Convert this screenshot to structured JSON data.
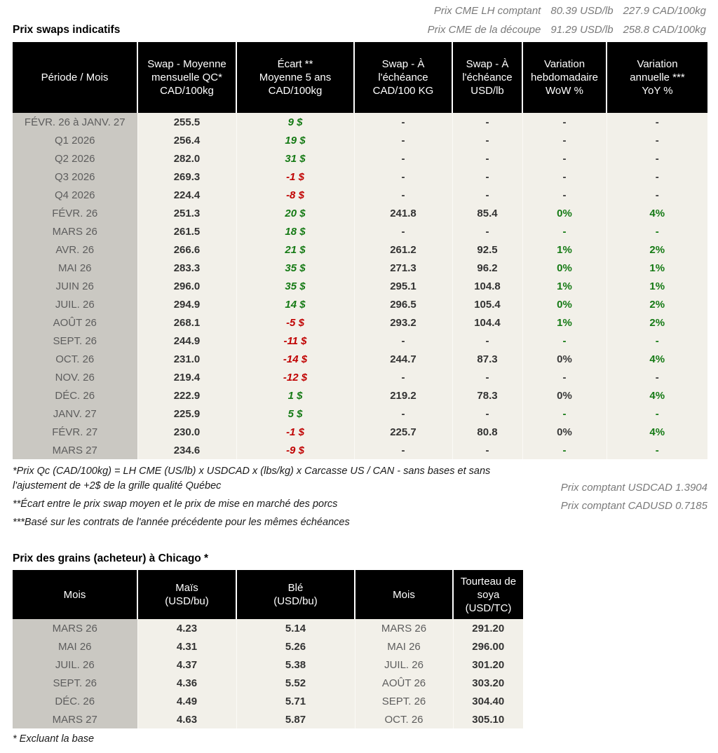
{
  "colors": {
    "positive": "#157a15",
    "negative": "#c00000",
    "neutral": "#3a3a3a",
    "header_bg": "#000000",
    "body_bg": "#f2f0e9",
    "period_bg": "#cac8c2"
  },
  "cme_header": {
    "line1": {
      "label": "Prix CME LH comptant",
      "usd": "80.39 USD/lb",
      "cad": "227.9 CAD/100kg"
    },
    "line2": {
      "label": "Prix CME de la découpe",
      "usd": "91.29 USD/lb",
      "cad": "258.8 CAD/100kg"
    }
  },
  "swaps": {
    "title": "Prix swaps indicatifs",
    "columns": [
      "Période / Mois",
      "Swap - Moyenne\nmensuelle QC*\nCAD/100kg",
      "Écart **\nMoyenne 5 ans\nCAD/100kg",
      "Swap - À\nl'échéance\nCAD/100 KG",
      "Swap - À\nl'échéance\nUSD/lb",
      "Variation\nhebdomadaire\nWoW %",
      "Variation\nannuelle ***\nYoY %"
    ],
    "rows": [
      {
        "period": "FÉVR. 26 à JANV. 27",
        "swap_qc": "255.5",
        "ecart": "9 $",
        "ecart_color": "pos",
        "cad": "-",
        "usd": "-",
        "wow": "-",
        "wow_color": "neutral",
        "yoy": "-",
        "yoy_color": "neutral"
      },
      {
        "period": "Q1 2026",
        "swap_qc": "256.4",
        "ecart": "19 $",
        "ecart_color": "pos",
        "cad": "-",
        "usd": "-",
        "wow": "-",
        "wow_color": "neutral",
        "yoy": "-",
        "yoy_color": "neutral"
      },
      {
        "period": "Q2 2026",
        "swap_qc": "282.0",
        "ecart": "31 $",
        "ecart_color": "pos",
        "cad": "-",
        "usd": "-",
        "wow": "-",
        "wow_color": "neutral",
        "yoy": "-",
        "yoy_color": "neutral"
      },
      {
        "period": "Q3 2026",
        "swap_qc": "269.3",
        "ecart": "-1 $",
        "ecart_color": "neg",
        "cad": "-",
        "usd": "-",
        "wow": "-",
        "wow_color": "neutral",
        "yoy": "-",
        "yoy_color": "neutral"
      },
      {
        "period": "Q4 2026",
        "swap_qc": "224.4",
        "ecart": "-8 $",
        "ecart_color": "neg",
        "cad": "-",
        "usd": "-",
        "wow": "-",
        "wow_color": "neutral",
        "yoy": "-",
        "yoy_color": "neutral"
      },
      {
        "period": "FÉVR. 26",
        "swap_qc": "251.3",
        "ecart": "20 $",
        "ecart_color": "pos",
        "cad": "241.8",
        "usd": "85.4",
        "wow": "0%",
        "wow_color": "pos",
        "yoy": "4%",
        "yoy_color": "pos"
      },
      {
        "period": "MARS 26",
        "swap_qc": "261.5",
        "ecart": "18 $",
        "ecart_color": "pos",
        "cad": "-",
        "usd": "-",
        "wow": "-",
        "wow_color": "pos",
        "yoy": "-",
        "yoy_color": "pos"
      },
      {
        "period": "AVR. 26",
        "swap_qc": "266.6",
        "ecart": "21 $",
        "ecart_color": "pos",
        "cad": "261.2",
        "usd": "92.5",
        "wow": "1%",
        "wow_color": "pos",
        "yoy": "2%",
        "yoy_color": "pos"
      },
      {
        "period": "MAI 26",
        "swap_qc": "283.3",
        "ecart": "35 $",
        "ecart_color": "pos",
        "cad": "271.3",
        "usd": "96.2",
        "wow": "0%",
        "wow_color": "pos",
        "yoy": "1%",
        "yoy_color": "pos"
      },
      {
        "period": "JUIN 26",
        "swap_qc": "296.0",
        "ecart": "35 $",
        "ecart_color": "pos",
        "cad": "295.1",
        "usd": "104.8",
        "wow": "1%",
        "wow_color": "pos",
        "yoy": "1%",
        "yoy_color": "pos"
      },
      {
        "period": "JUIL. 26",
        "swap_qc": "294.9",
        "ecart": "14 $",
        "ecart_color": "pos",
        "cad": "296.5",
        "usd": "105.4",
        "wow": "0%",
        "wow_color": "pos",
        "yoy": "2%",
        "yoy_color": "pos"
      },
      {
        "period": "AOÛT 26",
        "swap_qc": "268.1",
        "ecart": "-5 $",
        "ecart_color": "neg",
        "cad": "293.2",
        "usd": "104.4",
        "wow": "1%",
        "wow_color": "pos",
        "yoy": "2%",
        "yoy_color": "pos"
      },
      {
        "period": "SEPT. 26",
        "swap_qc": "244.9",
        "ecart": "-11 $",
        "ecart_color": "neg",
        "cad": "-",
        "usd": "-",
        "wow": "-",
        "wow_color": "pos",
        "yoy": "-",
        "yoy_color": "pos"
      },
      {
        "period": "OCT. 26",
        "swap_qc": "231.0",
        "ecart": "-14 $",
        "ecart_color": "neg",
        "cad": "244.7",
        "usd": "87.3",
        "wow": "0%",
        "wow_color": "neutral",
        "yoy": "4%",
        "yoy_color": "pos"
      },
      {
        "period": "NOV. 26",
        "swap_qc": "219.4",
        "ecart": "-12 $",
        "ecart_color": "neg",
        "cad": "-",
        "usd": "-",
        "wow": "-",
        "wow_color": "neutral",
        "yoy": "-",
        "yoy_color": "neutral"
      },
      {
        "period": "DÉC. 26",
        "swap_qc": "222.9",
        "ecart": "1 $",
        "ecart_color": "pos",
        "cad": "219.2",
        "usd": "78.3",
        "wow": "0%",
        "wow_color": "neutral",
        "yoy": "4%",
        "yoy_color": "pos"
      },
      {
        "period": "JANV. 27",
        "swap_qc": "225.9",
        "ecart": "5 $",
        "ecart_color": "pos",
        "cad": "-",
        "usd": "-",
        "wow": "-",
        "wow_color": "pos",
        "yoy": "-",
        "yoy_color": "pos"
      },
      {
        "period": "FÉVR. 27",
        "swap_qc": "230.0",
        "ecart": "-1 $",
        "ecart_color": "neg",
        "cad": "225.7",
        "usd": "80.8",
        "wow": "0%",
        "wow_color": "neutral",
        "yoy": "4%",
        "yoy_color": "pos"
      },
      {
        "period": "MARS 27",
        "swap_qc": "234.6",
        "ecart": "-9 $",
        "ecart_color": "neg",
        "cad": "-",
        "usd": "-",
        "wow": "-",
        "wow_color": "pos",
        "yoy": "-",
        "yoy_color": "pos"
      }
    ],
    "footnotes": [
      "*Prix Qc (CAD/100kg) = LH CME (US/lb) x USDCAD x (lbs/kg) x Carcasse US / CAN - sans bases et sans l'ajustement de +2$ de la grille qualité Québec",
      "**Écart entre le prix swap moyen et le prix de mise en marché des porcs",
      "***Basé sur les contrats de l'année précédente pour les mêmes échéances"
    ],
    "spot_rates": [
      {
        "label": "Prix comptant USDCAD",
        "value": "1.3904"
      },
      {
        "label": "Prix comptant CADUSD",
        "value": "0.7185"
      }
    ]
  },
  "grains": {
    "title": "Prix des grains (acheteur) à Chicago *",
    "columns": [
      "Mois",
      "Maïs\n(USD/bu)",
      "Blé\n(USD/bu)",
      "Mois",
      "Tourteau de\nsoya\n(USD/TC)"
    ],
    "rows": [
      {
        "mois": "MARS 26",
        "mais": "4.23",
        "ble": "5.14",
        "mois2": "MARS 26",
        "soya": "291.20"
      },
      {
        "mois": "MAI 26",
        "mais": "4.31",
        "ble": "5.26",
        "mois2": "MAI 26",
        "soya": "296.00"
      },
      {
        "mois": "JUIL. 26",
        "mais": "4.37",
        "ble": "5.38",
        "mois2": "JUIL. 26",
        "soya": "301.20"
      },
      {
        "mois": "SEPT. 26",
        "mais": "4.36",
        "ble": "5.52",
        "mois2": "AOÛT 26",
        "soya": "303.20"
      },
      {
        "mois": "DÉC. 26",
        "mais": "4.49",
        "ble": "5.71",
        "mois2": "SEPT. 26",
        "soya": "304.40"
      },
      {
        "mois": "MARS 27",
        "mais": "4.63",
        "ble": "5.87",
        "mois2": "OCT. 26",
        "soya": "305.10"
      }
    ],
    "footnote": "* Excluant la base"
  }
}
